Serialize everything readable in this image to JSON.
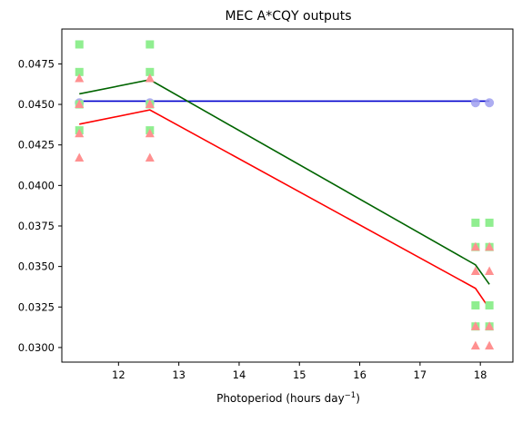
{
  "chart_data": {
    "type": "scatter",
    "title": "MEC A*CQY outputs",
    "xlabel": "Photoperiod (hours day",
    "xlabel_superscript": "−1",
    "xlabel_suffix": ")",
    "ylabel": "",
    "xlim": [
      11.06,
      18.54
    ],
    "ylim": [
      0.0291,
      0.04965
    ],
    "x_ticks": [
      12,
      13,
      14,
      15,
      16,
      17,
      18
    ],
    "x_tick_labels": [
      "12",
      "13",
      "14",
      "15",
      "16",
      "17",
      "18"
    ],
    "y_ticks": [
      0.03,
      0.0325,
      0.035,
      0.0375,
      0.04,
      0.0425,
      0.045,
      0.0475
    ],
    "y_tick_labels": [
      "0.0300",
      "0.0325",
      "0.0350",
      "0.0375",
      "0.0400",
      "0.0425",
      "0.0450",
      "0.0475"
    ],
    "grid": false,
    "legend": "none",
    "lines": [
      {
        "color": "#0000cd",
        "points": [
          [
            11.35,
            0.0452
          ],
          [
            18.15,
            0.0452
          ]
        ]
      },
      {
        "color": "#006400",
        "points": [
          [
            11.35,
            0.04565
          ],
          [
            12.52,
            0.04652
          ],
          [
            17.92,
            0.0351
          ],
          [
            18.15,
            0.0339
          ]
        ]
      },
      {
        "color": "#ff0000",
        "points": [
          [
            11.35,
            0.04378
          ],
          [
            12.52,
            0.04466
          ],
          [
            17.92,
            0.03365
          ],
          [
            18.15,
            0.0324
          ]
        ]
      }
    ],
    "scatter": [
      {
        "marker": "circle",
        "color": "#9f9fef",
        "points": [
          [
            11.35,
            0.0451
          ],
          [
            12.52,
            0.0451
          ],
          [
            17.92,
            0.0451
          ],
          [
            18.15,
            0.0451
          ]
        ]
      },
      {
        "marker": "square",
        "color": "#90ee90",
        "points": [
          [
            11.35,
            0.0487
          ],
          [
            11.35,
            0.047
          ],
          [
            11.35,
            0.045
          ],
          [
            11.35,
            0.0434
          ],
          [
            12.52,
            0.0487
          ],
          [
            12.52,
            0.047
          ],
          [
            12.52,
            0.045
          ],
          [
            12.52,
            0.0434
          ],
          [
            17.92,
            0.0377
          ],
          [
            17.92,
            0.0362
          ],
          [
            17.92,
            0.0326
          ],
          [
            17.92,
            0.0313
          ],
          [
            18.15,
            0.0377
          ],
          [
            18.15,
            0.0362
          ],
          [
            18.15,
            0.0326
          ],
          [
            18.15,
            0.0313
          ]
        ]
      },
      {
        "marker": "triangle",
        "color": "#ff9090",
        "points": [
          [
            11.35,
            0.0466
          ],
          [
            11.35,
            0.045
          ],
          [
            11.35,
            0.0432
          ],
          [
            11.35,
            0.0417
          ],
          [
            12.52,
            0.0466
          ],
          [
            12.52,
            0.045
          ],
          [
            12.52,
            0.0432
          ],
          [
            12.52,
            0.0417
          ],
          [
            17.92,
            0.0362
          ],
          [
            17.92,
            0.0347
          ],
          [
            17.92,
            0.0313
          ],
          [
            17.92,
            0.0301
          ],
          [
            18.15,
            0.0362
          ],
          [
            18.15,
            0.0347
          ],
          [
            18.15,
            0.0313
          ],
          [
            18.15,
            0.0301
          ]
        ]
      }
    ]
  }
}
